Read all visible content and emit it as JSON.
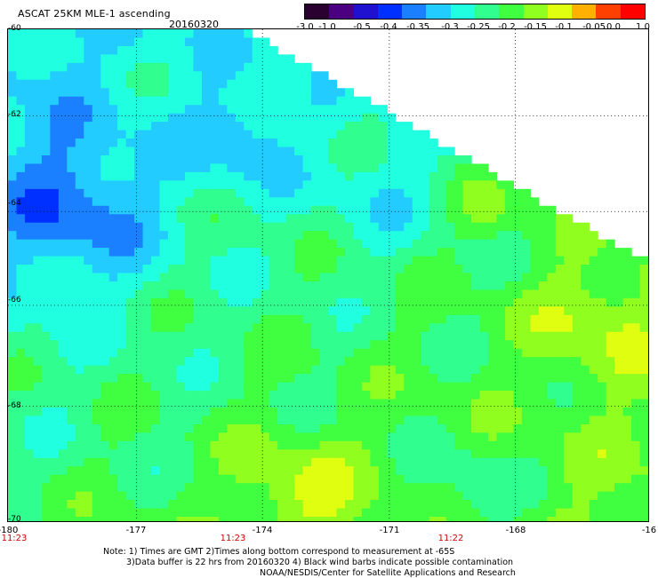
{
  "header": {
    "title": "ASCAT 25KM MLE-1 ascending",
    "date": "20160320"
  },
  "colorbar": {
    "labels": [
      "-3.0",
      "-1.0",
      "-0.5",
      "-0.4",
      "-0.35",
      "-0.3",
      "-0.25",
      "-0.2",
      "-0.15",
      "-0.1",
      "-0.05",
      "0.0",
      "1.0"
    ],
    "colors": [
      "#2a0030",
      "#4a0080",
      "#2010d0",
      "#0030ff",
      "#1a80ff",
      "#22ccff",
      "#20ffe0",
      "#30ff90",
      "#40ff40",
      "#90ff20",
      "#e0ff10",
      "#ffb000",
      "#ff4000",
      "#ff0000"
    ]
  },
  "axes": {
    "x_ticks": [
      "-180",
      "-177",
      "-174",
      "-171",
      "-168",
      "-16"
    ],
    "y_ticks": [
      "-60",
      "-62",
      "-64",
      "-66",
      "-68",
      "-70"
    ]
  },
  "times": [
    "11:23",
    "11:23",
    "11:22"
  ],
  "notes": {
    "line1": "Note: 1) Times are GMT 2)Times along bottom correspond to measurement at -65S",
    "line2": "3)Data buffer is 22 hrs from 20160320 4) Black wind barbs indicate possible contamination",
    "line3": "NOAA/NESDIS/Center for Satellite Applications and Research"
  }
}
